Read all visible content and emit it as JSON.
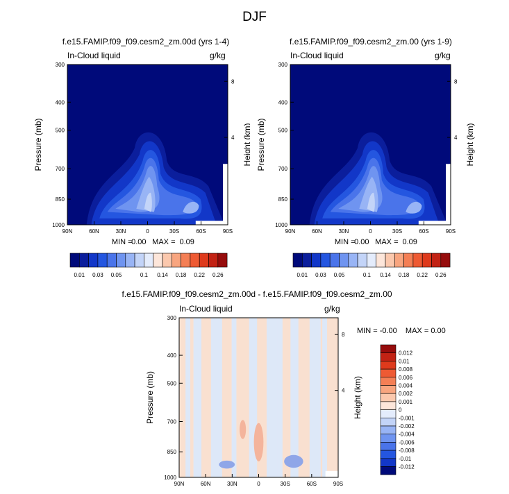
{
  "figure": {
    "title": "DJF"
  },
  "colors": {
    "blues": [
      "#000a7a",
      "#0b1e9c",
      "#1237c8",
      "#2456e0",
      "#4a74ea",
      "#6f94f0",
      "#98b4f5",
      "#c3d4f8",
      "#e4ecfc"
    ],
    "reds": [
      "#fde6da",
      "#fbc8ad",
      "#f8a57f",
      "#f47f55",
      "#ee5a33",
      "#de3a1c",
      "#c22214",
      "#960c0c"
    ],
    "diff_pos": "#f9e0d0",
    "diff_neg": "#dde8f8",
    "diff_red": "#f4b49c",
    "diff_blue": "#8fa6e8"
  },
  "chart_data": [
    {
      "type": "heatmap",
      "title": "f.e15.FAMIP.f09_f09.cesm2_zm.00d (yrs 1-4)",
      "left_label": "In-Cloud liquid",
      "right_label": "g/kg",
      "ylabel": "Pressure (mb)",
      "y2label": "Height (km)",
      "xticks": [
        "90N",
        "60N",
        "30N",
        "0",
        "30S",
        "60S",
        "90S"
      ],
      "yticks": [
        "300",
        "400",
        "500",
        "700",
        "850",
        "1000"
      ],
      "y2ticks": [
        "8",
        "4"
      ],
      "xlim": [
        90,
        -90
      ],
      "ylim": [
        1000,
        300
      ],
      "stats": {
        "min_label": "MIN =",
        "min": "0.00",
        "max_label": "MAX =",
        "max": "0.09"
      }
    },
    {
      "type": "heatmap",
      "title": "f.e15.FAMIP.f09_f09.cesm2_zm.00 (yrs 1-9)",
      "left_label": "In-Cloud liquid",
      "right_label": "g/kg",
      "ylabel": "Pressure (mb)",
      "y2label": "Height (km)",
      "xticks": [
        "90N",
        "60N",
        "30N",
        "0",
        "30S",
        "60S",
        "90S"
      ],
      "yticks": [
        "300",
        "400",
        "500",
        "700",
        "850",
        "1000"
      ],
      "y2ticks": [
        "8",
        "4"
      ],
      "xlim": [
        90,
        -90
      ],
      "ylim": [
        1000,
        300
      ],
      "stats": {
        "min_label": "MIN =",
        "min": "0.00",
        "max_label": "MAX =",
        "max": "0.09"
      }
    },
    {
      "type": "heatmap",
      "title": "f.e15.FAMIP.f09_f09.cesm2_zm.00d - f.e15.FAMIP.f09_f09.cesm2_zm.00",
      "left_label": "In-Cloud liquid",
      "right_label": "g/kg",
      "ylabel": "Pressure (mb)",
      "y2label": "Height (km)",
      "xticks": [
        "90N",
        "60N",
        "30N",
        "0",
        "30S",
        "60S",
        "90S"
      ],
      "yticks": [
        "300",
        "400",
        "500",
        "700",
        "850",
        "1000"
      ],
      "y2ticks": [
        "8",
        "4"
      ],
      "xlim": [
        90,
        -90
      ],
      "ylim": [
        1000,
        300
      ],
      "stats": {
        "min_label": "MIN =",
        "min": "-0.00",
        "max_label": "MAX =",
        "max": "0.00"
      }
    }
  ],
  "colorbar_top": {
    "labels": [
      "0.01",
      "0.03",
      "0.05",
      "0.1",
      "0.14",
      "0.18",
      "0.22",
      "0.26"
    ]
  },
  "colorbar_diff": {
    "labels": [
      "0.012",
      "0.01",
      "0.008",
      "0.006",
      "0.004",
      "0.002",
      "0.001",
      "0",
      "-0.001",
      "-0.002",
      "-0.004",
      "-0.006",
      "-0.008",
      "-0.01",
      "-0.012"
    ]
  }
}
